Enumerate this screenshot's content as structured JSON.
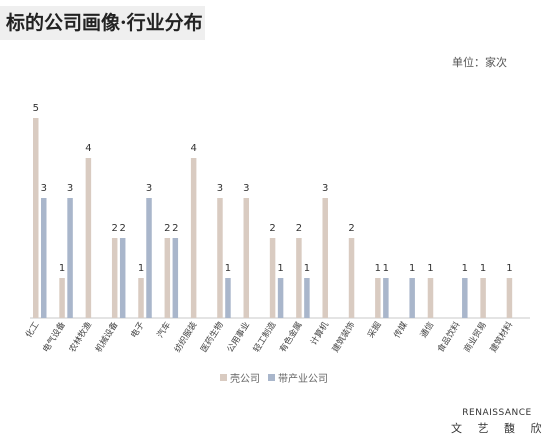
{
  "title": "标的公司画像·行业分布",
  "unit_label": "单位：家次",
  "brand": {
    "latin": "RENAISSANCE",
    "chinese": "文 艺 馥 欣"
  },
  "colors": {
    "shell": "#d9cbc1",
    "industry": "#a9b6cb",
    "label": "#333333",
    "axis": "#c8c8c8"
  },
  "chart_data": {
    "type": "bar",
    "categories": [
      "化工",
      "电气设备",
      "农林牧渔",
      "机械设备",
      "电子",
      "汽车",
      "纺织服装",
      "医药生物",
      "公用事业",
      "轻工制造",
      "有色金属",
      "计算机",
      "建筑装饰",
      "采掘",
      "传媒",
      "通信",
      "食品饮料",
      "商业贸易",
      "建筑材料"
    ],
    "series": [
      {
        "name": "壳公司",
        "values": [
          5,
          1,
          4,
          2,
          1,
          2,
          4,
          3,
          3,
          2,
          2,
          3,
          2,
          1,
          null,
          1,
          null,
          1,
          1
        ]
      },
      {
        "name": "带产业公司",
        "values": [
          3,
          3,
          null,
          2,
          3,
          2,
          null,
          1,
          null,
          1,
          1,
          null,
          null,
          1,
          1,
          null,
          1,
          null,
          null
        ]
      }
    ],
    "ylim": [
      0,
      5
    ],
    "grid": false,
    "legend": "bottom"
  }
}
